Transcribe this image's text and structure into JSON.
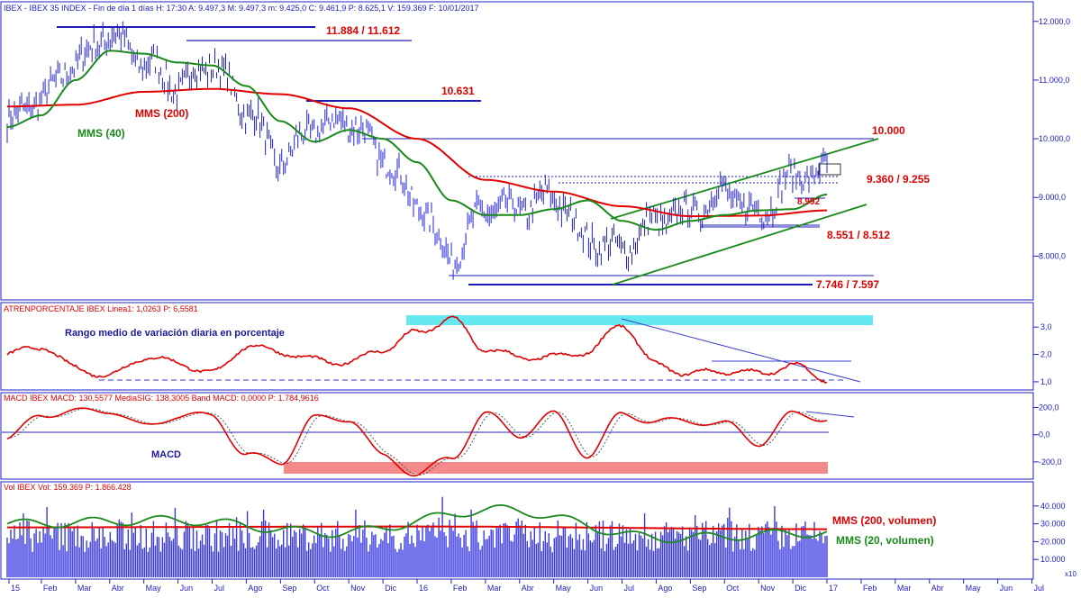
{
  "colors": {
    "price": "#2323d6",
    "sma200": "#e00000",
    "sma40": "#1a8a1a",
    "level_line": "#1c1cb4",
    "trend_line": "#1a8a1a",
    "annotation_red": "#e00000",
    "annotation_blue": "#1a1a9a",
    "annotation_green": "#1a8a1a",
    "atr_highlight": "#66e8f0",
    "macd_highlight": "#f58a8a",
    "axis_text": "#2020c0",
    "grid": "#2020c0"
  },
  "header": {
    "price_panel": "IBEX - IBEX 35 INDEX - Fin de día 1 días H: 17:30 A: 9.497,3 M: 9.497,3 m: 9.425,0 C: 9.461,9 P: 8.625,1 V: 159.369 F: 10/01/2017",
    "atr_panel": "ATRENPORCENTAJE  IBEX Linea1: 1,0263 P: 6,5581",
    "macd_panel": "MACD  IBEX MACD: 130,5577  MediaSIG: 138,3005  Band  MACD: 0,0000  P: 1.784,9616",
    "vol_panel": "Vol  IBEX Vol: 159.369  P: 1.866.428"
  },
  "labels": {
    "mms200": "MMS (200)",
    "mms40": "MMS (40)",
    "lvl_11884": "11.884  / 11.612",
    "lvl_10631": "10.631",
    "lvl_10000": "10.000",
    "lvl_9360": "9.360 / 9.255",
    "lvl_8992": "8.992",
    "lvl_8551": "8.551 / 8.512",
    "lvl_7746": "7.746 / 7.597",
    "atr_note": "Rango medio de variación diaria en porcentaje",
    "macd_note": "MACD",
    "vol_mms200": "MMS (200, volumen)",
    "vol_mms20": "MMS (20, volumen)"
  },
  "axes": {
    "price_ticks": [
      "12.000,0",
      "11.000,0",
      "10.000,0",
      "9.000,0",
      "8.000,0"
    ],
    "atr_ticks": [
      "3,0",
      "2,0",
      "1,0"
    ],
    "macd_ticks": [
      "200,0",
      "0,0",
      "-200,0"
    ],
    "vol_ticks": [
      "40.000",
      "30.000",
      "20.000",
      "10.000"
    ],
    "vol_unit": "x10",
    "x_ticks": [
      "15",
      "Feb",
      "Mar",
      "Abr",
      "May",
      "Jun",
      "Jul",
      "Ago",
      "Sep",
      "Oct",
      "Nov",
      "Dic",
      "16",
      "Feb",
      "Mar",
      "Abr",
      "May",
      "Jun",
      "Jul",
      "Ago",
      "Sep",
      "Oct",
      "Nov",
      "Dic",
      "17",
      "Feb",
      "Mar",
      "Abr",
      "May",
      "Jun",
      "Jul"
    ]
  },
  "chart_data": [
    {
      "type": "line",
      "title": "IBEX - IBEX 35 INDEX",
      "ylim": [
        7300,
        12150
      ],
      "x_range": [
        "2015-01",
        "2017-01"
      ],
      "series": [
        {
          "name": "IBEX",
          "x": [
            "2015-01",
            "2015-02",
            "2015-03",
            "2015-04",
            "2015-05",
            "2015-06",
            "2015-07",
            "2015-08",
            "2015-09",
            "2015-10",
            "2015-11",
            "2015-12",
            "2016-01",
            "2016-02",
            "2016-03",
            "2016-04",
            "2016-05",
            "2016-06",
            "2016-07",
            "2016-08",
            "2016-09",
            "2016-10",
            "2016-11",
            "2016-12",
            "2017-01"
          ],
          "values": [
            10300,
            10700,
            11300,
            11800,
            11300,
            10900,
            11300,
            10500,
            9600,
            10200,
            10300,
            9700,
            8900,
            8000,
            8800,
            8800,
            9000,
            8300,
            8100,
            8600,
            8750,
            9100,
            8700,
            9350,
            9460
          ]
        },
        {
          "name": "MMS (200)",
          "x": [
            "2015-01",
            "2015-03",
            "2015-05",
            "2015-07",
            "2015-09",
            "2015-11",
            "2016-01",
            "2016-03",
            "2016-05",
            "2016-07",
            "2016-09",
            "2016-11",
            "2017-01"
          ],
          "values": [
            10550,
            10580,
            10800,
            10850,
            10760,
            10520,
            10000,
            9300,
            9100,
            8850,
            8680,
            8690,
            8780
          ]
        },
        {
          "name": "MMS (40)",
          "x": [
            "2015-01",
            "2015-02",
            "2015-03",
            "2015-04",
            "2015-05",
            "2015-06",
            "2015-07",
            "2015-08",
            "2015-09",
            "2015-10",
            "2015-11",
            "2015-12",
            "2016-01",
            "2016-02",
            "2016-03",
            "2016-04",
            "2016-05",
            "2016-06",
            "2016-07",
            "2016-08",
            "2016-09",
            "2016-10",
            "2016-11",
            "2016-12",
            "2017-01"
          ],
          "values": [
            10200,
            10400,
            11000,
            11500,
            11450,
            11300,
            11250,
            10900,
            10300,
            9950,
            10150,
            10000,
            9600,
            8950,
            8700,
            8700,
            8800,
            8950,
            8600,
            8450,
            8600,
            8700,
            8780,
            8800,
            9050
          ]
        }
      ],
      "levels": [
        11884,
        11612,
        10631,
        10000,
        9360,
        9255,
        8992,
        8551,
        8512,
        7746,
        7597
      ]
    },
    {
      "type": "line",
      "title": "ATRENPORCENTAJE",
      "ylim": [
        0.8,
        3.5
      ],
      "series": [
        {
          "name": "ATR %",
          "x": [
            "2015-01",
            "2015-02",
            "2015-03",
            "2015-04",
            "2015-05",
            "2015-06",
            "2015-07",
            "2015-08",
            "2015-09",
            "2015-10",
            "2015-11",
            "2015-12",
            "2016-01",
            "2016-02",
            "2016-03",
            "2016-04",
            "2016-05",
            "2016-06",
            "2016-07",
            "2016-08",
            "2016-09",
            "2016-10",
            "2016-11",
            "2016-12",
            "2017-01"
          ],
          "values": [
            2.0,
            2.3,
            1.5,
            1.2,
            1.9,
            1.7,
            1.3,
            2.3,
            2.1,
            1.8,
            1.7,
            2.2,
            2.8,
            3.3,
            2.2,
            1.9,
            1.9,
            2.1,
            3.1,
            1.6,
            1.3,
            1.4,
            1.3,
            1.6,
            1.1
          ]
        }
      ]
    },
    {
      "type": "line",
      "title": "MACD",
      "ylim": [
        -300,
        230
      ],
      "series": [
        {
          "name": "MACD",
          "x": [
            "2015-01",
            "2015-02",
            "2015-03",
            "2015-04",
            "2015-05",
            "2015-06",
            "2015-07",
            "2015-08",
            "2015-09",
            "2015-10",
            "2015-11",
            "2015-12",
            "2016-01",
            "2016-02",
            "2016-03",
            "2016-04",
            "2016-05",
            "2016-06",
            "2016-07",
            "2016-08",
            "2016-09",
            "2016-10",
            "2016-11",
            "2016-12",
            "2017-01"
          ],
          "values": [
            -30,
            150,
            170,
            180,
            60,
            140,
            140,
            -150,
            -200,
            120,
            120,
            -160,
            -290,
            -170,
            150,
            0,
            150,
            -150,
            150,
            100,
            100,
            80,
            -60,
            150,
            120
          ]
        },
        {
          "name": "MediaSIG",
          "x": [
            "2015-01",
            "2015-04",
            "2015-07",
            "2015-10",
            "2016-01",
            "2016-04",
            "2016-07",
            "2016-10",
            "2017-01"
          ],
          "values": [
            -20,
            170,
            130,
            80,
            -250,
            20,
            120,
            90,
            138
          ]
        }
      ]
    },
    {
      "type": "bar",
      "title": "Vol",
      "ylim": [
        0,
        48000
      ],
      "x_range": [
        "2015-01",
        "2017-01"
      ],
      "series": [
        {
          "name": "MMS (200, volumen)",
          "x": [
            "2015-01",
            "2016-01",
            "2017-01"
          ],
          "values": [
            28000,
            28500,
            27000
          ]
        },
        {
          "name": "MMS (20, volumen)",
          "x": [
            "2015-01",
            "2015-06",
            "2016-01",
            "2016-06",
            "2016-10",
            "2017-01"
          ],
          "values": [
            30000,
            32000,
            25000,
            38000,
            22000,
            25000
          ]
        }
      ],
      "last_value": 159369
    }
  ]
}
